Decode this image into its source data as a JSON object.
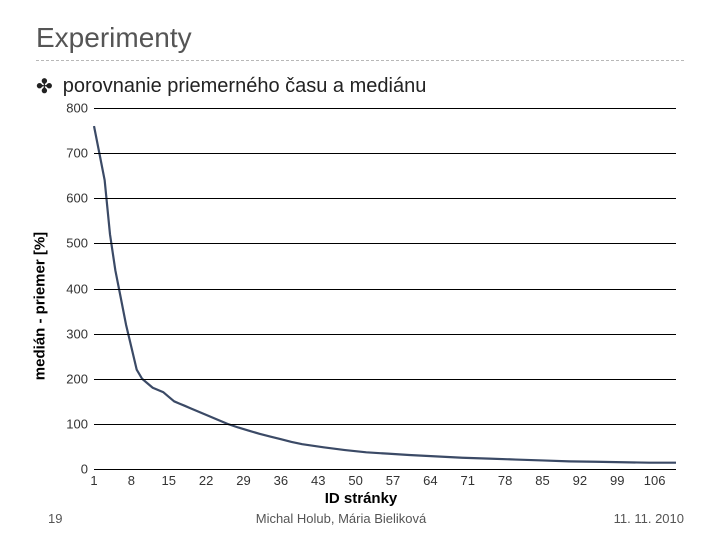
{
  "title": "Experimenty",
  "subtitle": "porovnanie priemerného času a mediánu",
  "bullet_glyph": "✤",
  "footer": {
    "page": "19",
    "authors": "Michal Holub, Mária Bieliková",
    "date": "11. 11. 2010"
  },
  "chart": {
    "type": "line",
    "y_label": "medián - priemer [%]",
    "x_label": "ID stránky",
    "ylim": [
      0,
      800
    ],
    "ytick_step": 100,
    "y_ticks": [
      0,
      100,
      200,
      300,
      400,
      500,
      600,
      700,
      800
    ],
    "x_ticks": [
      1,
      8,
      15,
      22,
      29,
      36,
      43,
      50,
      57,
      64,
      71,
      78,
      85,
      92,
      99,
      106
    ],
    "xlim": [
      1,
      110
    ],
    "grid_color": "#000000",
    "grid_on": true,
    "background_color": "#ffffff",
    "line_color": "#3b4a66",
    "line_width": 2.2,
    "series": {
      "x": [
        1,
        2,
        3,
        4,
        5,
        6,
        7,
        8,
        9,
        10,
        11,
        12,
        13,
        14,
        15,
        16,
        17,
        18,
        19,
        20,
        22,
        24,
        26,
        28,
        30,
        32,
        34,
        36,
        38,
        40,
        44,
        48,
        52,
        56,
        60,
        65,
        70,
        75,
        80,
        85,
        90,
        95,
        100,
        105,
        110
      ],
      "y": [
        760,
        700,
        640,
        520,
        440,
        380,
        320,
        270,
        220,
        200,
        190,
        180,
        175,
        170,
        160,
        150,
        145,
        140,
        135,
        130,
        120,
        110,
        100,
        92,
        85,
        78,
        72,
        66,
        60,
        55,
        48,
        42,
        37,
        34,
        31,
        28,
        25,
        23,
        21,
        19,
        17,
        16,
        15,
        14,
        14
      ]
    }
  }
}
